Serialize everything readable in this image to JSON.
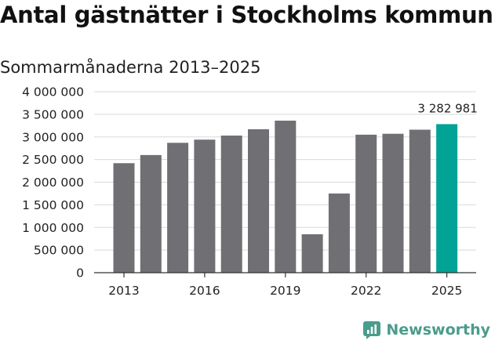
{
  "chart_data": {
    "type": "bar",
    "title": "Antal gästnätter i Stockholms kommun",
    "subtitle": "Sommarmånaderna 2013–2025",
    "categories": [
      "2013",
      "2014",
      "2015",
      "2016",
      "2017",
      "2018",
      "2019",
      "2020",
      "2021",
      "2022",
      "2023",
      "2024",
      "2025"
    ],
    "values": [
      2420000,
      2600000,
      2870000,
      2940000,
      3030000,
      3170000,
      3360000,
      850000,
      1750000,
      3050000,
      3070000,
      3160000,
      3282981
    ],
    "x_tick_labels": [
      "2013",
      "2016",
      "2019",
      "2022",
      "2025"
    ],
    "y_tick_labels": [
      "0",
      "500 000",
      "1 000 000",
      "1 500 000",
      "2 000 000",
      "2 500 000",
      "3 000 000",
      "3 500 000",
      "4 000 000"
    ],
    "ylim": [
      0,
      4000000
    ],
    "data_labels": [
      {
        "category": "2025",
        "text": "3 282 981"
      }
    ],
    "grid": true,
    "colors": {
      "bar": "#707074",
      "highlight": "#00a396",
      "grid": "#d9d9d9",
      "axis": "#333333"
    }
  },
  "branding": {
    "logo_text": "Newsworthy"
  }
}
